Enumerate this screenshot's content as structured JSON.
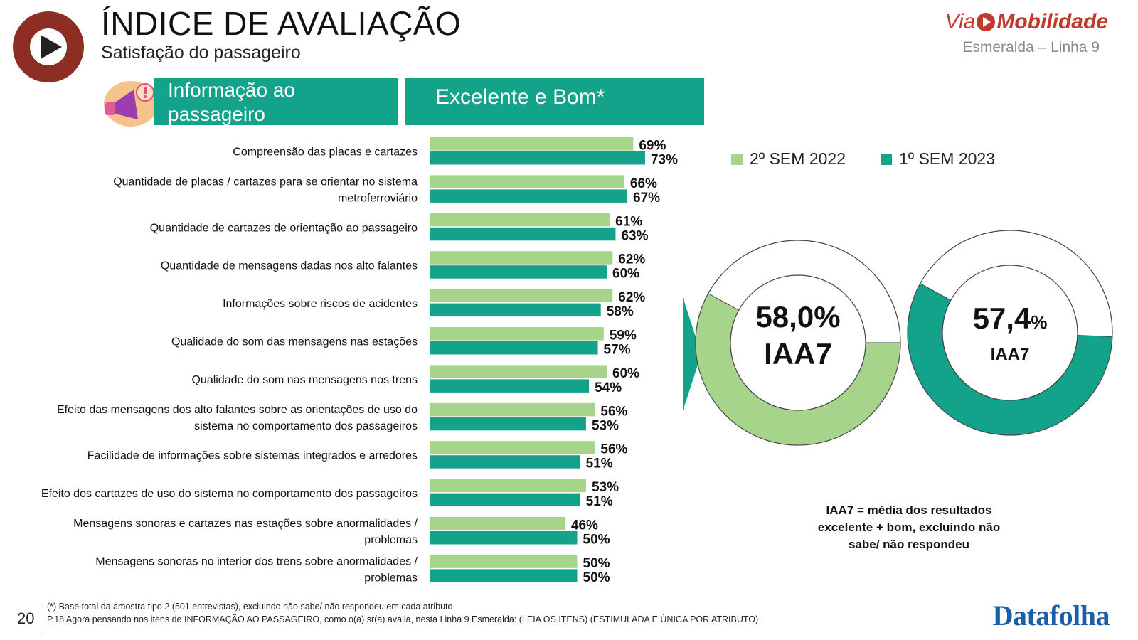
{
  "header": {
    "title": "ÍNDICE DE AVALIAÇÃO",
    "subtitle": "Satisfação do passageiro",
    "brand_via": "Via",
    "brand_name": "Mobilidade",
    "brand_line": "Esmeralda – Linha 9"
  },
  "banners": {
    "section": "Informação ao passageiro",
    "metric": "Excelente e Bom*"
  },
  "colors": {
    "series_2022": "#a6d48a",
    "series_2023": "#13a38b"
  },
  "chart_data": [
    {
      "type": "bar",
      "orientation": "horizontal",
      "categories": [
        "Compreensão das placas e cartazes",
        "Quantidade de placas / cartazes para se orientar no sistema metroferroviário",
        "Quantidade de cartazes de orientação ao passageiro",
        "Quantidade de mensagens dadas nos alto falantes",
        "Informações sobre riscos de acidentes",
        "Qualidade do som das mensagens nas estações",
        "Qualidade do som nas mensagens nos trens",
        "Efeito das mensagens dos alto falantes sobre as orientações de uso do sistema no comportamento dos passageiros",
        "Facilidade de informações sobre sistemas integrados e arredores",
        "Efeito dos cartazes de uso do sistema no comportamento dos passageiros",
        "Mensagens sonoras e cartazes nas estações sobre anormalidades / problemas",
        "Mensagens sonoras no interior dos trens sobre anormalidades / problemas"
      ],
      "category_lines": [
        [
          "Compreensão das placas e cartazes"
        ],
        [
          "Quantidade de placas / cartazes para se orientar no sistema",
          "metroferroviário"
        ],
        [
          "Quantidade de cartazes de orientação ao passageiro"
        ],
        [
          "Quantidade de mensagens dadas nos alto falantes"
        ],
        [
          "Informações sobre riscos de acidentes"
        ],
        [
          "Qualidade do som das mensagens nas estações"
        ],
        [
          "Qualidade do som nas mensagens nos trens"
        ],
        [
          "Efeito das mensagens dos alto falantes sobre as orientações de uso do",
          "sistema no comportamento dos passageiros"
        ],
        [
          "Facilidade de informações sobre sistemas integrados e arredores"
        ],
        [
          "Efeito dos cartazes de uso do sistema no comportamento dos passageiros"
        ],
        [
          "Mensagens sonoras e cartazes nas estações sobre anormalidades /",
          "problemas"
        ],
        [
          "Mensagens sonoras no interior dos trens sobre anormalidades /",
          "problemas"
        ]
      ],
      "series": [
        {
          "name": "2º SEM 2022",
          "values": [
            69,
            66,
            61,
            62,
            62,
            59,
            60,
            56,
            56,
            53,
            46,
            50
          ]
        },
        {
          "name": "1º SEM 2023",
          "values": [
            73,
            67,
            63,
            60,
            58,
            57,
            54,
            53,
            51,
            51,
            50,
            50
          ]
        }
      ],
      "value_suffix": "%",
      "legend_position": "top-right"
    },
    {
      "type": "pie",
      "variant": "donut",
      "series_name": "2º SEM 2022",
      "value": 58.0,
      "value_label": "58,0%",
      "label": "IAA7"
    },
    {
      "type": "pie",
      "variant": "donut",
      "series_name": "1º SEM 2023",
      "value": 57.4,
      "value_label": "57,4",
      "value_unit": "%",
      "label": "IAA7"
    }
  ],
  "note": "IAA7 = média dos resultados excelente + bom, excluindo não sabe/ não respondeu",
  "footer": {
    "page": "20",
    "line1": "(*) Base total da amostra tipo 2 (501 entrevistas), excluindo não sabe/ não respondeu em cada atributo",
    "line2": "P.18 Agora pensando nos itens de INFORMAÇÃO AO PASSAGEIRO, como o(a) sr(a) avalia, nesta Linha 9 Esmeralda: (LEIA OS ITENS) (ESTIMULADA E ÚNICA POR ATRIBUTO)",
    "brand": "Datafolha"
  }
}
